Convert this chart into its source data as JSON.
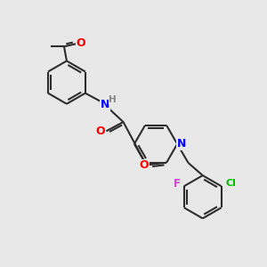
{
  "bg_color": "#e8e8e8",
  "bond_color": "#2d2d2d",
  "atom_colors": {
    "O": "#ff0000",
    "N": "#0000ff",
    "Cl": "#00bb00",
    "F": "#cc44cc",
    "H": "#888888",
    "C": "#2d2d2d"
  },
  "figsize": [
    3.0,
    3.0
  ],
  "dpi": 100
}
